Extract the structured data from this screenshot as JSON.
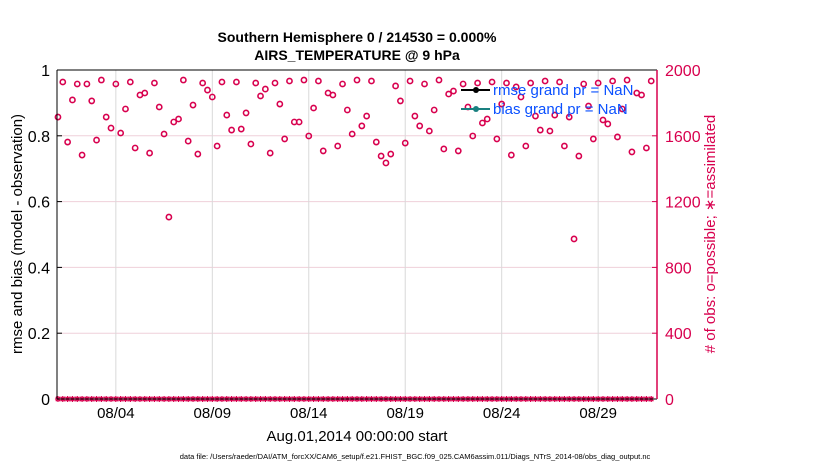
{
  "chart_data": {
    "type": "scatter",
    "title_line1": "Southern Hemisphere 0 / 214530 = 0.000%",
    "title_line2": "AIRS_TEMPERATURE @ 9 hPa",
    "xlabel": "Aug.01,2014 00:00:00 start",
    "ylabel_left": "rmse and bias (model - observation)",
    "ylabel_right": "# of obs: o=possible; ∗=assimilated",
    "ylim_left": [
      0,
      1
    ],
    "ylim_right": [
      0,
      2000
    ],
    "xlim_days": [
      -0.05,
      31.05
    ],
    "x_step_days": 0.25,
    "left_ticks": [
      "0",
      "0.2",
      "0.4",
      "0.6",
      "0.8",
      "1"
    ],
    "right_ticks": [
      "0",
      "400",
      "800",
      "1200",
      "1600",
      "2000"
    ],
    "x_ticks": [
      {
        "day": 3,
        "label": "08/04"
      },
      {
        "day": 8,
        "label": "08/09"
      },
      {
        "day": 13,
        "label": "08/14"
      },
      {
        "day": 18,
        "label": "08/19"
      },
      {
        "day": 23,
        "label": "08/24"
      },
      {
        "day": 28,
        "label": "08/29"
      }
    ],
    "grid": true,
    "legend": {
      "placement": "top-right",
      "entries": [
        {
          "label": "rmse grand pr = NaN",
          "color": "#000000"
        },
        {
          "label": "bias grand pr = NaN",
          "color": "#1a8080"
        }
      ]
    },
    "possible_obs": [
      1714,
      1927,
      1562,
      1818,
      1915,
      1483,
      1915,
      1812,
      1574,
      1939,
      1714,
      1647,
      1915,
      1617,
      1763,
      1927,
      1526,
      1848,
      1860,
      1495,
      1921,
      1775,
      1611,
      1106,
      1684,
      1702,
      1939,
      1568,
      1787,
      1489,
      1921,
      1878,
      1836,
      1538,
      1927,
      1726,
      1635,
      1927,
      1641,
      1739,
      1550,
      1921,
      1842,
      1884,
      1495,
      1921,
      1793,
      1581,
      1933,
      1684,
      1684,
      1939,
      1599,
      1769,
      1933,
      1508,
      1860,
      1848,
      1538,
      1915,
      1757,
      1611,
      1939,
      1660,
      1720,
      1933,
      1562,
      1477,
      1435,
      1489,
      1903,
      1812,
      1556,
      1933,
      1720,
      1660,
      1915,
      1629,
      1757,
      1939,
      1520,
      1854,
      1872,
      1508,
      1915,
      1775,
      1599,
      1921,
      1678,
      1702,
      1927,
      1581,
      1793,
      1921,
      1483,
      1897,
      1836,
      1538,
      1921,
      1720,
      1635,
      1933,
      1629,
      1726,
      1927,
      1538,
      1714,
      973,
      1477,
      1915,
      1781,
      1581,
      1921,
      1696,
      1672,
      1933,
      1593,
      1763,
      1939,
      1502,
      1860,
      1848,
      1526,
      1933
    ],
    "assimilated_obs_value": 0,
    "colors": {
      "obs": "#d8004e",
      "grid_h": "#efd0da",
      "grid_v": "#d9d9d9",
      "legend_text": "#0a50ff"
    }
  },
  "footer": "data file: /Users/raeder/DAI/ATM_forcXX/CAM6_setup/f.e21.FHIST_BGC.f09_025.CAM6assim.011/Diags_NTrS_2014-08/obs_diag_output.nc"
}
